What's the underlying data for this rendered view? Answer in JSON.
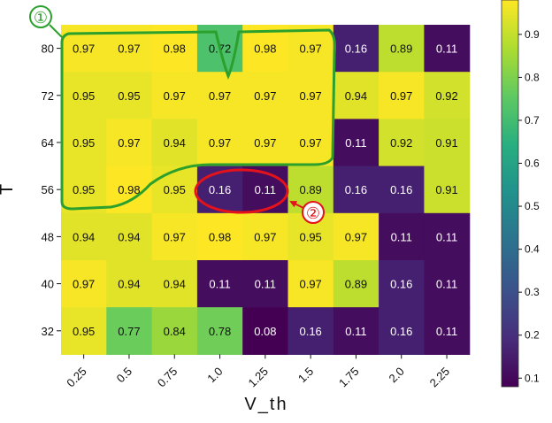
{
  "chart_data": {
    "type": "heatmap",
    "xlabel": "V_th",
    "ylabel": "T",
    "x_categories": [
      "0.25",
      "0.5",
      "0.75",
      "1.0",
      "1.25",
      "1.5",
      "1.75",
      "2.0",
      "2.25"
    ],
    "y_categories": [
      "80",
      "72",
      "64",
      "56",
      "48",
      "40",
      "32"
    ],
    "values": [
      [
        0.97,
        0.97,
        0.98,
        0.72,
        0.98,
        0.97,
        0.16,
        0.89,
        0.11
      ],
      [
        0.95,
        0.95,
        0.97,
        0.97,
        0.97,
        0.97,
        0.94,
        0.97,
        0.92
      ],
      [
        0.95,
        0.97,
        0.94,
        0.97,
        0.97,
        0.97,
        0.11,
        0.92,
        0.91
      ],
      [
        0.95,
        0.98,
        0.95,
        0.16,
        0.11,
        0.89,
        0.16,
        0.16,
        0.91
      ],
      [
        0.94,
        0.94,
        0.97,
        0.98,
        0.97,
        0.95,
        0.97,
        0.11,
        0.11
      ],
      [
        0.97,
        0.94,
        0.94,
        0.11,
        0.11,
        0.97,
        0.89,
        0.16,
        0.11
      ],
      [
        0.95,
        0.77,
        0.84,
        0.78,
        0.08,
        0.16,
        0.11,
        0.16,
        0.11
      ]
    ],
    "colormap": "viridis",
    "colorbar": {
      "range": [
        0.08,
        0.98
      ],
      "ticks": [
        "0.1",
        "0.2",
        "0.3",
        "0.4",
        "0.5",
        "0.6",
        "0.7",
        "0.8",
        "0.9"
      ]
    },
    "annotations": [
      {
        "label": "①",
        "color": "#2ca02c",
        "region": "green outline around high-value block"
      },
      {
        "label": "②",
        "color": "#e3121b",
        "region": "red ellipse around V_th 1.0–1.25 at T 56"
      }
    ]
  }
}
